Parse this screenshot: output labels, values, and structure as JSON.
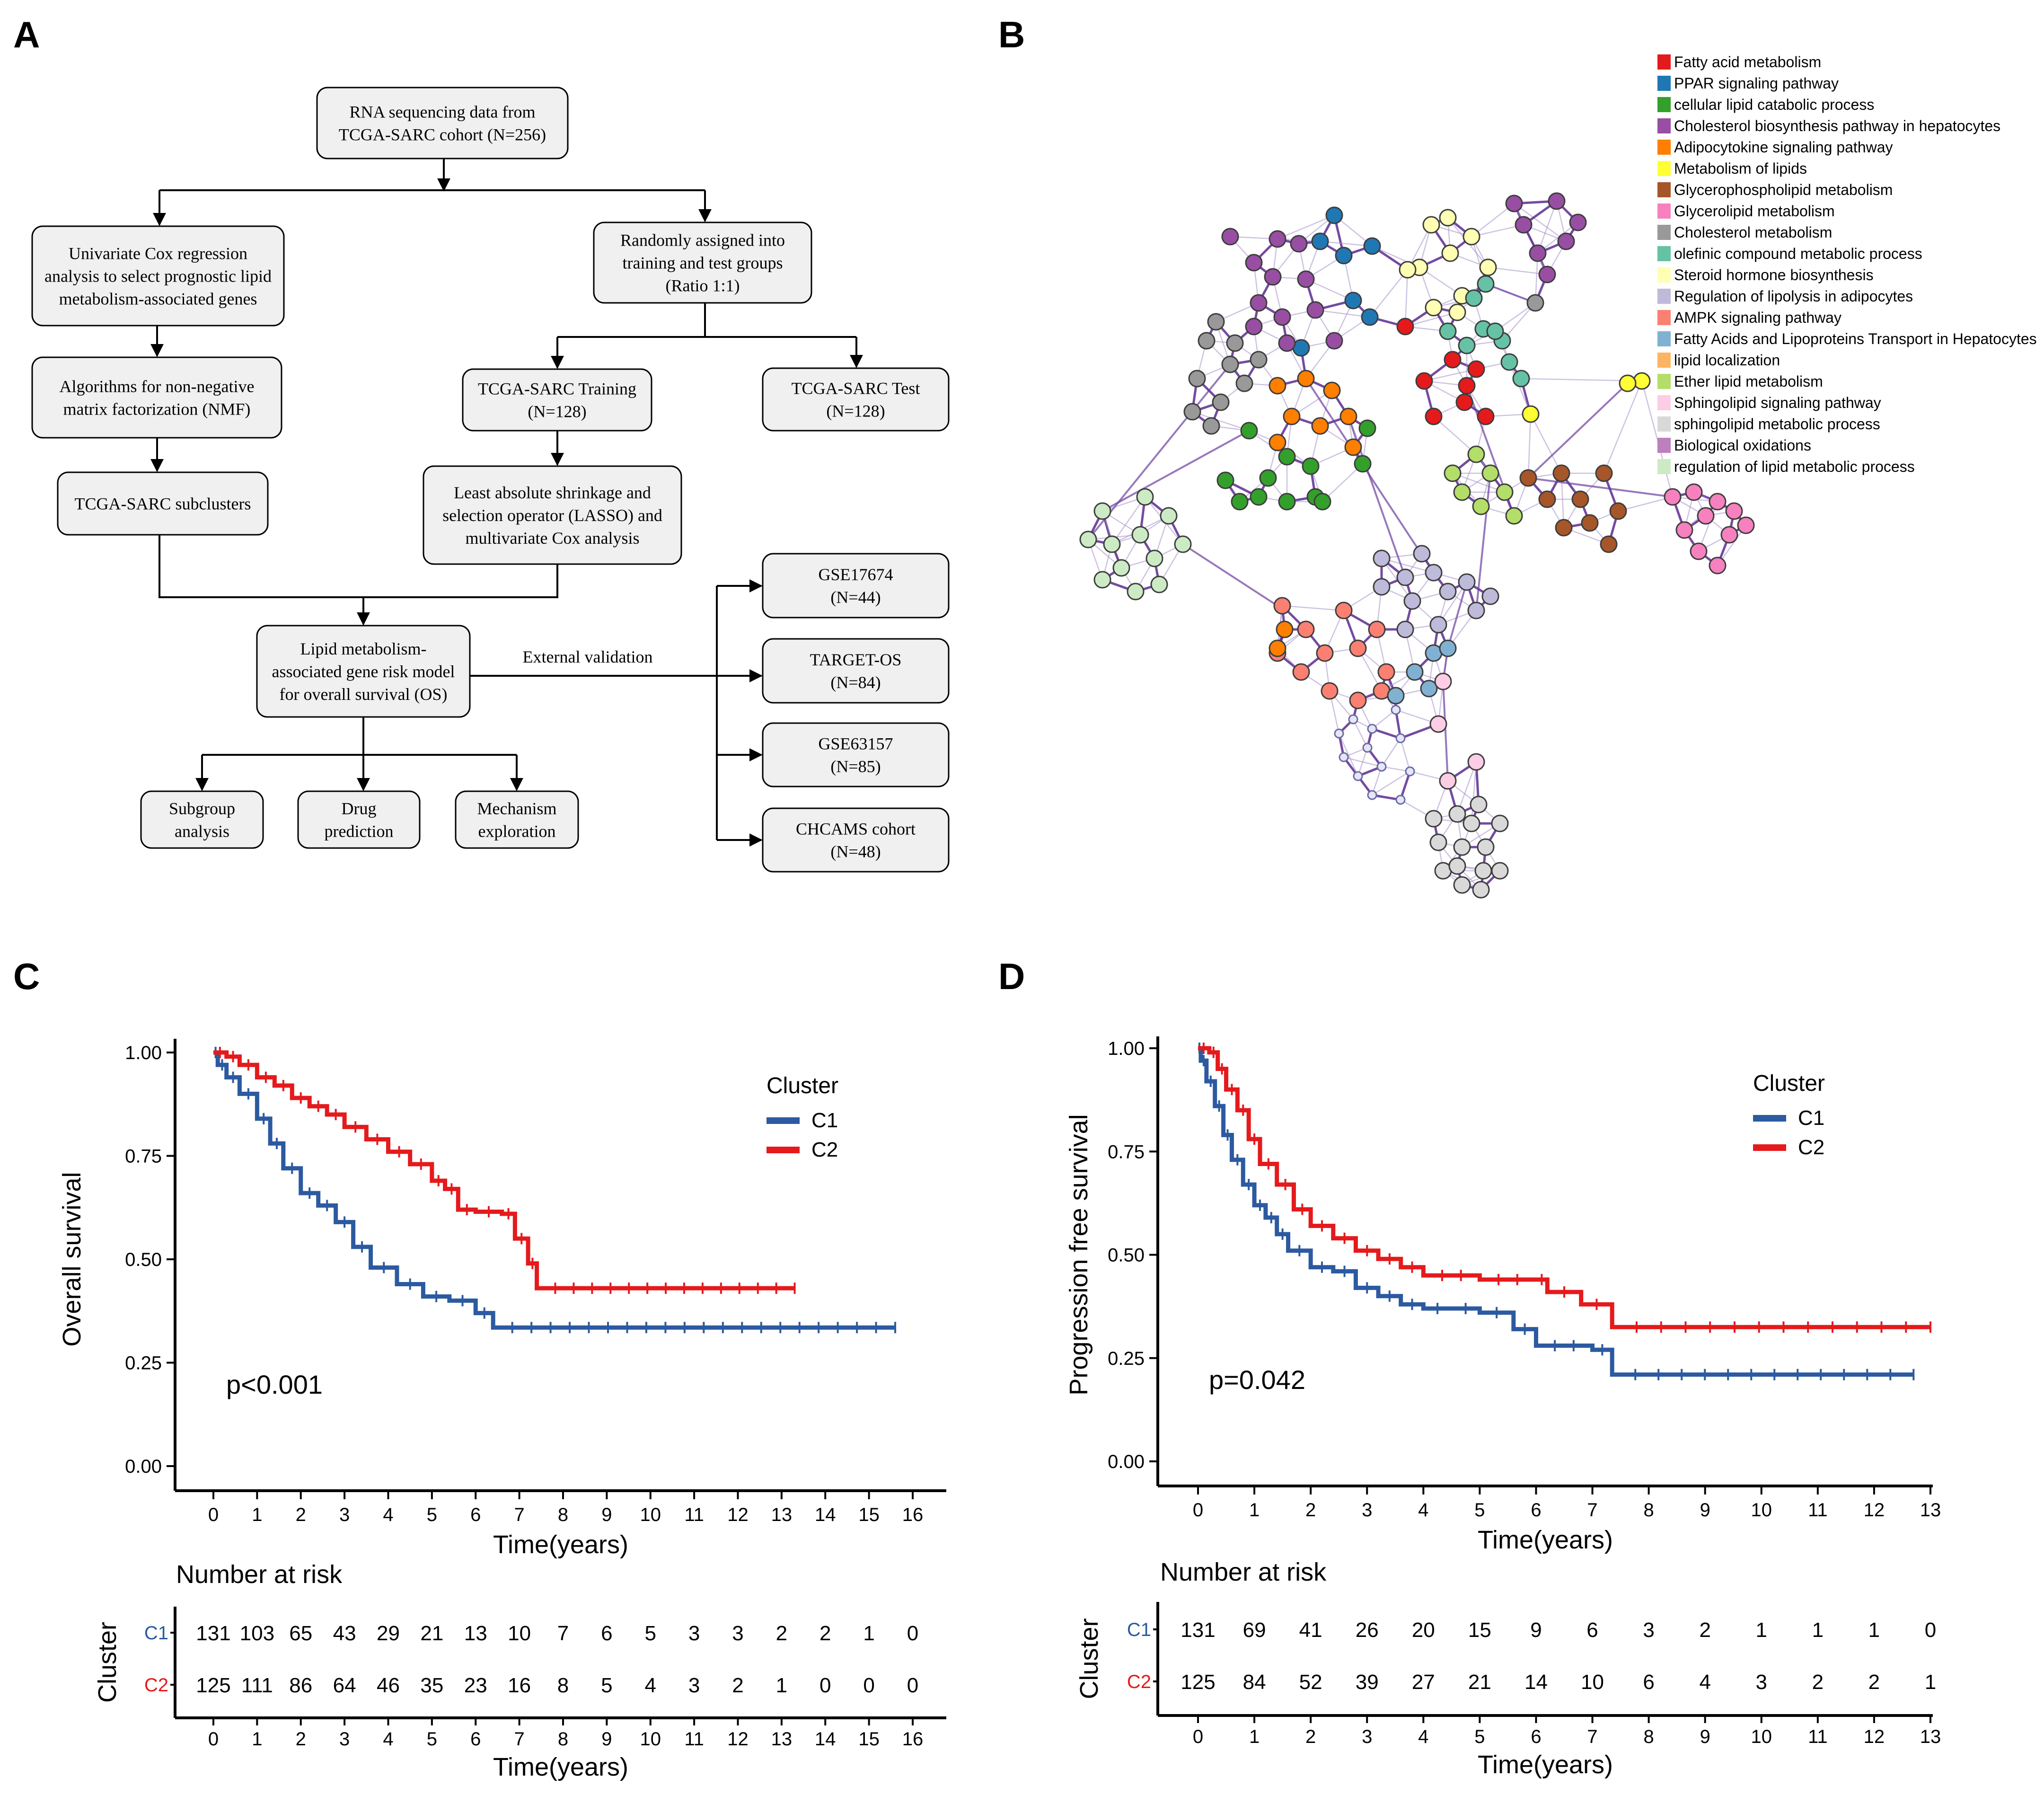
{
  "panel_labels": [
    "A",
    "B",
    "C",
    "D"
  ],
  "flowchart": {
    "rna": [
      "RNA sequencing data from",
      "TCGA-SARC cohort (N=256)"
    ],
    "univariate": [
      "Univariate Cox regression",
      "analysis to select prognostic lipid",
      "metabolism-associated genes"
    ],
    "random": [
      "Randomly assigned into",
      "training and test groups",
      "(Ratio 1:1)"
    ],
    "nmf": [
      "Algorithms for non-negative",
      "matrix factorization (NMF)"
    ],
    "training": [
      "TCGA-SARC Training",
      "(N=128)"
    ],
    "test": [
      "TCGA-SARC Test",
      "(N=128)"
    ],
    "subclusters": [
      "TCGA-SARC subclusters"
    ],
    "lasso": [
      "Least absolute shrinkage and",
      "selection operator (LASSO) and",
      "multivariate Cox analysis"
    ],
    "model": [
      "Lipid metabolism-",
      "associated gene risk model",
      "for overall survival (OS)"
    ],
    "ext_label": "External validation",
    "gse17674": [
      "GSE17674",
      "(N=44)"
    ],
    "target": [
      "TARGET-OS",
      "(N=84)"
    ],
    "gse63157": [
      "GSE63157",
      "(N=85)"
    ],
    "chcams": [
      "CHCAMS cohort",
      "(N=48)"
    ],
    "subgroup": [
      "Subgroup",
      "analysis"
    ],
    "drug": [
      "Drug",
      "prediction"
    ],
    "mechanism": [
      "Mechanism",
      "exploration"
    ]
  },
  "network_legend": [
    {
      "label": "Fatty acid metabolism",
      "color": "#e41a1c"
    },
    {
      "label": "PPAR signaling pathway",
      "color": "#1f78b4"
    },
    {
      "label": "cellular lipid catabolic process",
      "color": "#33a02c"
    },
    {
      "label": "Cholesterol biosynthesis pathway in hepatocytes",
      "color": "#984ea3"
    },
    {
      "label": "Adipocytokine signaling pathway",
      "color": "#ff7f00"
    },
    {
      "label": "Metabolism of lipids",
      "color": "#ffff33"
    },
    {
      "label": "Glycerophospholipid metabolism",
      "color": "#a65628"
    },
    {
      "label": "Glycerolipid metabolism",
      "color": "#f781bf"
    },
    {
      "label": "Cholesterol metabolism",
      "color": "#999999"
    },
    {
      "label": "olefinic compound metabolic process",
      "color": "#66c2a5"
    },
    {
      "label": "Steroid hormone biosynthesis",
      "color": "#ffffb3"
    },
    {
      "label": "Regulation of lipolysis in adipocytes",
      "color": "#bebada"
    },
    {
      "label": "AMPK signaling pathway",
      "color": "#fb8072"
    },
    {
      "label": "Fatty Acids and Lipoproteins Transport in Hepatocytes",
      "color": "#80b1d3"
    },
    {
      "label": "lipid localization",
      "color": "#fdb462"
    },
    {
      "label": "Ether lipid metabolism",
      "color": "#b3de69"
    },
    {
      "label": "Sphingolipid signaling pathway",
      "color": "#fccde5"
    },
    {
      "label": "sphingolipid metabolic process",
      "color": "#d9d9d9"
    },
    {
      "label": "Biological oxidations",
      "color": "#bc80bd"
    },
    {
      "label": "regulation of lipid metabolic process",
      "color": "#ccebc5"
    }
  ],
  "chart_data": [
    {
      "type": "line",
      "panel": "C",
      "ylabel": "Overall survival",
      "xlabel": "Time(years)",
      "xlim": [
        0,
        16
      ],
      "ylim": [
        0,
        1
      ],
      "x_ticks": [
        "0",
        "1",
        "2",
        "3",
        "4",
        "5",
        "6",
        "7",
        "8",
        "9",
        "10",
        "11",
        "12",
        "13",
        "14",
        "15",
        "16"
      ],
      "y_ticks": [
        "0.00",
        "0.25",
        "0.50",
        "0.75",
        "1.00"
      ],
      "legend_title": "Cluster",
      "annotation": "p<0.001",
      "series": [
        {
          "name": "C1",
          "color": "#2c5aa0",
          "x": [
            0,
            0.1,
            0.3,
            0.6,
            1.0,
            1.3,
            1.6,
            2.0,
            2.4,
            2.8,
            3.2,
            3.6,
            4.2,
            4.8,
            5.4,
            6.0,
            6.4,
            15.6
          ],
          "y": [
            1.0,
            0.97,
            0.94,
            0.9,
            0.84,
            0.78,
            0.72,
            0.66,
            0.63,
            0.59,
            0.53,
            0.48,
            0.44,
            0.41,
            0.4,
            0.37,
            0.335,
            0.335
          ]
        },
        {
          "name": "C2",
          "color": "#e41a1c",
          "x": [
            0,
            0.3,
            0.6,
            1.0,
            1.4,
            1.8,
            2.2,
            2.6,
            3.0,
            3.5,
            4.0,
            4.5,
            5.0,
            5.3,
            5.6,
            6.0,
            6.6,
            6.9,
            7.2,
            7.4,
            13.3
          ],
          "y": [
            1.0,
            0.99,
            0.97,
            0.94,
            0.92,
            0.89,
            0.87,
            0.85,
            0.82,
            0.79,
            0.76,
            0.73,
            0.69,
            0.67,
            0.62,
            0.615,
            0.61,
            0.55,
            0.49,
            0.43,
            0.43
          ]
        }
      ],
      "risk_table": {
        "title": "Number at risk",
        "ylabel": "Cluster",
        "xlabel": "Time(years)",
        "rows": [
          {
            "name": "C1",
            "color": "#2c5aa0",
            "values": [
              "131",
              "103",
              "65",
              "43",
              "29",
              "21",
              "13",
              "10",
              "7",
              "6",
              "5",
              "3",
              "3",
              "2",
              "2",
              "1",
              "0"
            ]
          },
          {
            "name": "C2",
            "color": "#e41a1c",
            "values": [
              "125",
              "111",
              "86",
              "64",
              "46",
              "35",
              "23",
              "16",
              "8",
              "5",
              "4",
              "3",
              "2",
              "1",
              "0",
              "0",
              "0"
            ]
          }
        ]
      }
    },
    {
      "type": "line",
      "panel": "D",
      "ylabel": "Progression free survival",
      "xlabel": "Time(years)",
      "xlim": [
        0,
        13
      ],
      "ylim": [
        0,
        1
      ],
      "x_ticks": [
        "0",
        "1",
        "2",
        "3",
        "4",
        "5",
        "6",
        "7",
        "8",
        "9",
        "10",
        "11",
        "12",
        "13"
      ],
      "y_ticks": [
        "0.00",
        "0.25",
        "0.50",
        "0.75",
        "1.00"
      ],
      "legend_title": "Cluster",
      "annotation": "p=0.042",
      "series": [
        {
          "name": "C1",
          "color": "#2c5aa0",
          "x": [
            0,
            0.05,
            0.15,
            0.3,
            0.45,
            0.6,
            0.8,
            1.0,
            1.2,
            1.4,
            1.6,
            2.0,
            2.4,
            2.8,
            3.2,
            3.6,
            4.0,
            4.5,
            5.0,
            5.6,
            6.0,
            7.0,
            7.35,
            12.7
          ],
          "y": [
            1.0,
            0.97,
            0.92,
            0.86,
            0.79,
            0.73,
            0.67,
            0.62,
            0.59,
            0.55,
            0.51,
            0.47,
            0.46,
            0.42,
            0.4,
            0.38,
            0.37,
            0.37,
            0.36,
            0.32,
            0.28,
            0.27,
            0.21,
            0.21
          ]
        },
        {
          "name": "C2",
          "color": "#e41a1c",
          "x": [
            0,
            0.2,
            0.35,
            0.5,
            0.7,
            0.9,
            1.1,
            1.4,
            1.7,
            2.0,
            2.4,
            2.8,
            3.2,
            3.6,
            4.0,
            5.0,
            6.0,
            6.2,
            6.8,
            7.35,
            13.0
          ],
          "y": [
            1.0,
            0.99,
            0.95,
            0.9,
            0.85,
            0.78,
            0.72,
            0.67,
            0.61,
            0.57,
            0.54,
            0.51,
            0.49,
            0.47,
            0.45,
            0.44,
            0.44,
            0.41,
            0.38,
            0.325,
            0.325
          ]
        }
      ],
      "risk_table": {
        "title": "Number at risk",
        "ylabel": "Cluster",
        "xlabel": "Time(years)",
        "rows": [
          {
            "name": "C1",
            "color": "#2c5aa0",
            "values": [
              "131",
              "69",
              "41",
              "26",
              "20",
              "15",
              "9",
              "6",
              "3",
              "2",
              "1",
              "1",
              "1",
              "0"
            ]
          },
          {
            "name": "C2",
            "color": "#e41a1c",
            "values": [
              "125",
              "84",
              "52",
              "39",
              "27",
              "21",
              "14",
              "10",
              "6",
              "4",
              "3",
              "2",
              "2",
              "1"
            ]
          }
        ]
      }
    }
  ]
}
